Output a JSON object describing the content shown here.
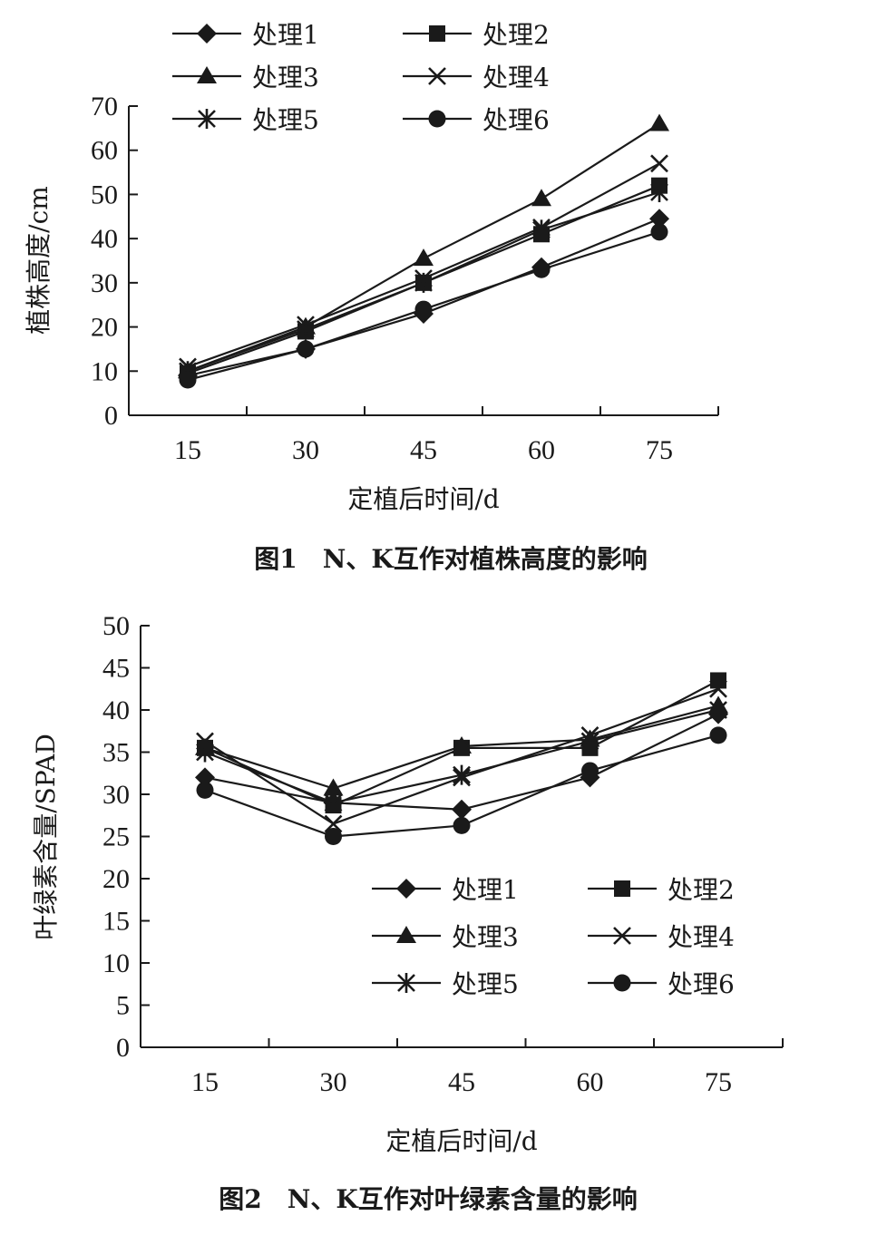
{
  "chart_data": [
    {
      "type": "line",
      "caption": "图1　N、K互作对植株高度的影响",
      "xlabel": "定植后时间/d",
      "ylabel": "植株高度/cm",
      "x": [
        15,
        30,
        45,
        60,
        75
      ],
      "xticks": [
        "15",
        "30",
        "45",
        "60",
        "75"
      ],
      "ylim": [
        0,
        70
      ],
      "yticks": [
        "0",
        "10",
        "20",
        "30",
        "40",
        "50",
        "60",
        "70"
      ],
      "legend_position": "top",
      "series": [
        {
          "name": "处理1",
          "marker": "diamond",
          "values": [
            9,
            15,
            23,
            33.5,
            44.5
          ]
        },
        {
          "name": "处理2",
          "marker": "square",
          "values": [
            9.5,
            19,
            30,
            41,
            52
          ]
        },
        {
          "name": "处理3",
          "marker": "triangle",
          "values": [
            10,
            20,
            35.5,
            49,
            66
          ]
        },
        {
          "name": "处理4",
          "marker": "x",
          "values": [
            11,
            20.5,
            31,
            42.5,
            57
          ]
        },
        {
          "name": "处理5",
          "marker": "asterisk",
          "values": [
            10,
            19.5,
            30,
            42,
            50.5
          ]
        },
        {
          "name": "处理6",
          "marker": "circle",
          "values": [
            8,
            15,
            24,
            33,
            41.5
          ]
        }
      ]
    },
    {
      "type": "line",
      "caption": "图2　N、K互作对叶绿素含量的影响",
      "xlabel": "定植后时间/d",
      "ylabel": "叶绿素含量/SPAD",
      "x": [
        15,
        30,
        45,
        60,
        75
      ],
      "xticks": [
        "15",
        "30",
        "45",
        "60",
        "75"
      ],
      "ylim": [
        0,
        50
      ],
      "yticks": [
        "0",
        "5",
        "10",
        "15",
        "20",
        "25",
        "30",
        "35",
        "40",
        "45",
        "50"
      ],
      "legend_position": "lower-right",
      "series": [
        {
          "name": "处理1",
          "marker": "diamond",
          "values": [
            32,
            29,
            28.2,
            32,
            39.5
          ]
        },
        {
          "name": "处理2",
          "marker": "square",
          "values": [
            35.5,
            28.7,
            35.5,
            35.5,
            43.5
          ]
        },
        {
          "name": "处理3",
          "marker": "triangle",
          "values": [
            35.5,
            30.7,
            35.7,
            36.5,
            40.5
          ]
        },
        {
          "name": "处理4",
          "marker": "x",
          "values": [
            36.3,
            26.5,
            32,
            37,
            42.5
          ]
        },
        {
          "name": "处理5",
          "marker": "asterisk",
          "values": [
            35,
            29,
            32.3,
            36.3,
            40
          ]
        },
        {
          "name": "处理6",
          "marker": "circle",
          "values": [
            30.5,
            25,
            26.3,
            32.8,
            37
          ]
        }
      ]
    }
  ]
}
